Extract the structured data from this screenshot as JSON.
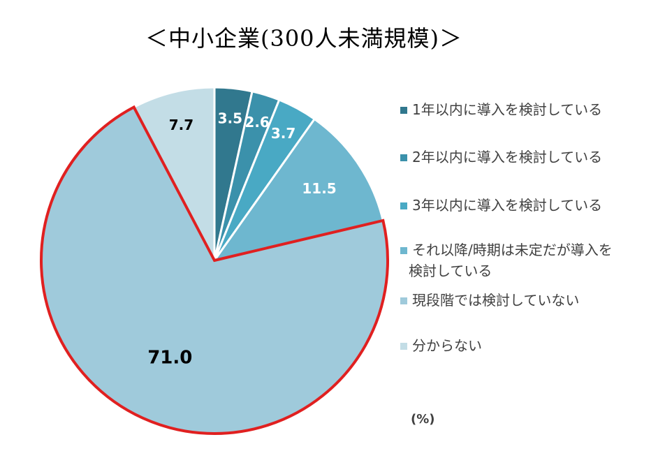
{
  "title": "＜中小企業(300人未満規模)＞",
  "unit_label": "(%)",
  "chart_data": {
    "type": "pie",
    "title": "＜中小企業(300人未満規模)＞",
    "unit": "%",
    "start": "12 o'clock",
    "direction": "clockwise",
    "highlighted_slice": "現段階では検討していない",
    "highlight_color": "#e02020",
    "legend_position": "right",
    "slices": [
      {
        "label": "1年以内に導入を検討している",
        "value": 3.5,
        "value_label": "3.5",
        "color": "#31788e",
        "text_color": "#ffffff"
      },
      {
        "label": "2年以内に導入を検討している",
        "value": 2.6,
        "value_label": "2.6",
        "color": "#3b91ab",
        "text_color": "#ffffff"
      },
      {
        "label": "3年以内に導入を検討している",
        "value": 3.7,
        "value_label": "3.7",
        "color": "#49a9c4",
        "text_color": "#ffffff"
      },
      {
        "label": "それ以降/時期は未定だが導入を検討している",
        "value": 11.5,
        "value_label": "11.5",
        "color": "#6eb7cf",
        "text_color": "#ffffff"
      },
      {
        "label": "現段階では検討していない",
        "value": 71.0,
        "value_label": "71.0",
        "color": "#9fcadb",
        "text_color": "#000000"
      },
      {
        "label": "分からない",
        "value": 7.7,
        "value_label": "7.7",
        "color": "#c3dde6",
        "text_color": "#000000"
      }
    ]
  },
  "legend": {
    "items": [
      {
        "lines": [
          "1年以内に導入を検討している"
        ]
      },
      {
        "lines": [
          "2年以内に導入を検討している"
        ]
      },
      {
        "lines": [
          "3年以内に導入を検討している"
        ]
      },
      {
        "lines": [
          "それ以降/時期は未定だが導入を",
          "検討している"
        ]
      },
      {
        "lines": [
          "現段階では検討していない"
        ]
      },
      {
        "lines": [
          "分からない"
        ]
      }
    ]
  }
}
